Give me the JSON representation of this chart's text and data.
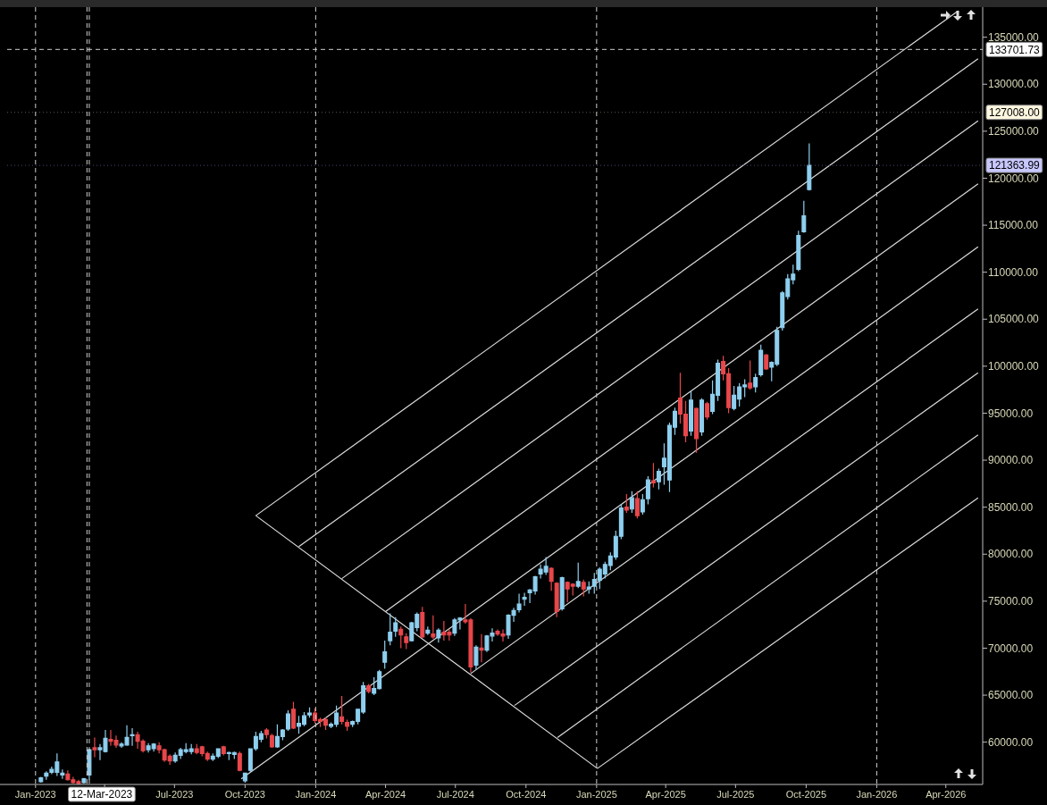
{
  "chart_data": {
    "type": "candlestick",
    "x": [
      "2023-01-08",
      "2023-01-15",
      "2023-01-22",
      "2023-01-29",
      "2023-02-05",
      "2023-02-12",
      "2023-02-19",
      "2023-02-26",
      "2023-03-05",
      "2023-03-12",
      "2023-03-19",
      "2023-03-26",
      "2023-04-02",
      "2023-04-09",
      "2023-04-16",
      "2023-04-23",
      "2023-04-30",
      "2023-05-07",
      "2023-05-14",
      "2023-05-21",
      "2023-05-28",
      "2023-06-04",
      "2023-06-11",
      "2023-06-18",
      "2023-06-25",
      "2023-07-02",
      "2023-07-09",
      "2023-07-16",
      "2023-07-23",
      "2023-07-30",
      "2023-08-06",
      "2023-08-13",
      "2023-08-20",
      "2023-08-27",
      "2023-09-03",
      "2023-09-10",
      "2023-09-17",
      "2023-09-24",
      "2023-10-01",
      "2023-10-08",
      "2023-10-15",
      "2023-10-22",
      "2023-10-29",
      "2023-11-05",
      "2023-11-12",
      "2023-11-19",
      "2023-11-26",
      "2023-12-03",
      "2023-12-10",
      "2023-12-17",
      "2023-12-24",
      "2023-12-31",
      "2024-01-07",
      "2024-01-14",
      "2024-01-21",
      "2024-01-28",
      "2024-02-04",
      "2024-02-11",
      "2024-02-18",
      "2024-02-25",
      "2024-03-03",
      "2024-03-10",
      "2024-03-17",
      "2024-03-24",
      "2024-03-31",
      "2024-04-07",
      "2024-04-14",
      "2024-04-21",
      "2024-04-28",
      "2024-05-05",
      "2024-05-12",
      "2024-05-19",
      "2024-05-26",
      "2024-06-02",
      "2024-06-09",
      "2024-06-16",
      "2024-06-23",
      "2024-06-30",
      "2024-07-07",
      "2024-07-14",
      "2024-07-21",
      "2024-07-28",
      "2024-08-04",
      "2024-08-11",
      "2024-08-18",
      "2024-08-25",
      "2024-09-01",
      "2024-09-08",
      "2024-09-15",
      "2024-09-22",
      "2024-09-29",
      "2024-10-06",
      "2024-10-13",
      "2024-10-20",
      "2024-10-27",
      "2024-11-03",
      "2024-11-10",
      "2024-11-17",
      "2024-11-24",
      "2024-12-01",
      "2024-12-08",
      "2024-12-15",
      "2024-12-22",
      "2024-12-29",
      "2025-01-05",
      "2025-01-12",
      "2025-01-19",
      "2025-01-26",
      "2025-02-02",
      "2025-02-09",
      "2025-02-16",
      "2025-02-23",
      "2025-03-02",
      "2025-03-09",
      "2025-03-16",
      "2025-03-23",
      "2025-03-30",
      "2025-04-06",
      "2025-04-13",
      "2025-04-20",
      "2025-04-27",
      "2025-05-04",
      "2025-05-11",
      "2025-05-18",
      "2025-05-25",
      "2025-06-01",
      "2025-06-08",
      "2025-06-15",
      "2025-06-22",
      "2025-06-29",
      "2025-07-06",
      "2025-07-13",
      "2025-07-20",
      "2025-07-27",
      "2025-08-03",
      "2025-08-10",
      "2025-08-17",
      "2025-08-24",
      "2025-08-31",
      "2025-09-07",
      "2025-09-14",
      "2025-09-21",
      "2025-09-28",
      "2025-10-05"
    ],
    "ohlc": [
      [
        55800,
        56300,
        55700,
        56200
      ],
      [
        56400,
        56900,
        56000,
        56700
      ],
      [
        56800,
        57400,
        56600,
        57100
      ],
      [
        56800,
        58800,
        56400,
        57900
      ],
      [
        56500,
        57100,
        56100,
        56700
      ],
      [
        56600,
        57000,
        55900,
        56000
      ],
      [
        56000,
        56300,
        55600,
        55700
      ],
      [
        55800,
        56000,
        55500,
        55600
      ],
      [
        55700,
        56200,
        55600,
        56100
      ],
      [
        56500,
        59300,
        56000,
        59200
      ],
      [
        59400,
        60500,
        58400,
        59200
      ],
      [
        59200,
        59800,
        58100,
        59400
      ],
      [
        59000,
        61300,
        58900,
        60400
      ],
      [
        60300,
        61300,
        59600,
        60100
      ],
      [
        60200,
        60700,
        59400,
        59700
      ],
      [
        59600,
        60000,
        59400,
        59800
      ],
      [
        59700,
        61800,
        59600,
        60500
      ],
      [
        60700,
        61500,
        59600,
        60800
      ],
      [
        60800,
        61100,
        59300,
        60100
      ],
      [
        60100,
        60300,
        58900,
        59100
      ],
      [
        59200,
        59900,
        58900,
        59600
      ],
      [
        59300,
        59900,
        59000,
        59800
      ],
      [
        59600,
        60000,
        58800,
        59200
      ],
      [
        59200,
        59300,
        57900,
        58100
      ],
      [
        58500,
        58700,
        57600,
        58000
      ],
      [
        58000,
        58900,
        57800,
        58600
      ],
      [
        58600,
        59400,
        58200,
        59200
      ],
      [
        59000,
        59900,
        58800,
        59200
      ],
      [
        59000,
        59800,
        58700,
        59300
      ],
      [
        59300,
        59800,
        58700,
        58900
      ],
      [
        59500,
        59600,
        58500,
        58800
      ],
      [
        58800,
        59000,
        58000,
        58200
      ],
      [
        58200,
        58800,
        58000,
        58500
      ],
      [
        58500,
        59300,
        58300,
        59300
      ],
      [
        59500,
        59600,
        58600,
        58800
      ],
      [
        58800,
        59000,
        58100,
        58900
      ],
      [
        58700,
        59000,
        58200,
        58900
      ],
      [
        58800,
        59000,
        56900,
        57000
      ],
      [
        55900,
        56700,
        55700,
        56700
      ],
      [
        57000,
        59300,
        56800,
        59300
      ],
      [
        59300,
        61100,
        59100,
        60600
      ],
      [
        60300,
        61200,
        60000,
        60900
      ],
      [
        61300,
        61500,
        60400,
        60800
      ],
      [
        60700,
        60900,
        59400,
        59500
      ],
      [
        59500,
        61900,
        59400,
        60600
      ],
      [
        60600,
        61400,
        60200,
        61300
      ],
      [
        61400,
        63400,
        61200,
        63000
      ],
      [
        63500,
        64300,
        61400,
        61500
      ],
      [
        61700,
        62800,
        60900,
        62000
      ],
      [
        61900,
        63200,
        61700,
        62800
      ],
      [
        62900,
        63700,
        62600,
        63100
      ],
      [
        63100,
        63600,
        62000,
        62300
      ],
      [
        62400,
        62600,
        61600,
        62200
      ],
      [
        62400,
        62600,
        61300,
        61800
      ],
      [
        61700,
        62100,
        61500,
        61900
      ],
      [
        61900,
        63900,
        61600,
        63100
      ],
      [
        62700,
        64900,
        61900,
        62200
      ],
      [
        62100,
        62400,
        61200,
        61700
      ],
      [
        61900,
        62300,
        61600,
        62200
      ],
      [
        62200,
        63500,
        61900,
        63500
      ],
      [
        63200,
        66400,
        63000,
        66000
      ],
      [
        66000,
        66200,
        65200,
        65400
      ],
      [
        65200,
        66900,
        65000,
        65700
      ],
      [
        65700,
        67700,
        65600,
        67500
      ],
      [
        68500,
        70800,
        67800,
        69600
      ],
      [
        70800,
        73700,
        70300,
        71700
      ],
      [
        71800,
        73300,
        71200,
        72700
      ],
      [
        72000,
        72300,
        70000,
        71400
      ],
      [
        71200,
        71600,
        69900,
        70600
      ],
      [
        70800,
        72800,
        70700,
        72700
      ],
      [
        72200,
        73800,
        71800,
        73600
      ],
      [
        73800,
        74400,
        71100,
        71200
      ],
      [
        71600,
        72300,
        71400,
        71900
      ],
      [
        71500,
        73500,
        71000,
        71200
      ],
      [
        71100,
        72100,
        70600,
        71900
      ],
      [
        71700,
        72900,
        70800,
        71400
      ],
      [
        71700,
        72000,
        70800,
        71400
      ],
      [
        71600,
        73200,
        71300,
        73000
      ],
      [
        73000,
        73300,
        72000,
        73200
      ],
      [
        73000,
        74700,
        72600,
        72800
      ],
      [
        73000,
        73200,
        67400,
        68000
      ],
      [
        68200,
        70300,
        67700,
        70100
      ],
      [
        70000,
        71500,
        68500,
        69800
      ],
      [
        69800,
        71400,
        69600,
        71300
      ],
      [
        71300,
        72100,
        70700,
        71600
      ],
      [
        71800,
        72000,
        71300,
        71500
      ],
      [
        71500,
        72000,
        70700,
        71300
      ],
      [
        71400,
        73600,
        71000,
        73500
      ],
      [
        73500,
        74300,
        72800,
        74000
      ],
      [
        74100,
        75800,
        73800,
        74700
      ],
      [
        75200,
        75900,
        74500,
        75400
      ],
      [
        75900,
        76300,
        74800,
        76200
      ],
      [
        76100,
        77700,
        75700,
        77600
      ],
      [
        77900,
        78900,
        77400,
        78400
      ],
      [
        78100,
        79700,
        77800,
        78700
      ],
      [
        78500,
        78600,
        76100,
        77100
      ],
      [
        76900,
        77000,
        73300,
        73900
      ],
      [
        74200,
        77600,
        74000,
        77500
      ],
      [
        77000,
        77100,
        74900,
        76300
      ],
      [
        76800,
        76900,
        75600,
        76600
      ],
      [
        76600,
        79100,
        76400,
        77100
      ],
      [
        77000,
        77300,
        75500,
        76300
      ],
      [
        76300,
        77100,
        75800,
        76500
      ],
      [
        76600,
        78000,
        75800,
        77300
      ],
      [
        77200,
        78600,
        76300,
        78400
      ],
      [
        77900,
        79200,
        77400,
        78900
      ],
      [
        78800,
        80200,
        78300,
        79800
      ],
      [
        79700,
        82500,
        79400,
        81900
      ],
      [
        81900,
        85300,
        81600,
        84900
      ],
      [
        85000,
        86400,
        84400,
        84700
      ],
      [
        84800,
        86700,
        84400,
        86000
      ],
      [
        85900,
        86700,
        83800,
        84100
      ],
      [
        84500,
        86400,
        84200,
        85800
      ],
      [
        85900,
        88300,
        85300,
        87900
      ],
      [
        87800,
        89700,
        87100,
        87600
      ],
      [
        87700,
        89100,
        86900,
        88800
      ],
      [
        89300,
        91800,
        87400,
        90200
      ],
      [
        87900,
        94000,
        86600,
        93700
      ],
      [
        93500,
        95600,
        92700,
        95200
      ],
      [
        96600,
        99300,
        93900,
        94900
      ],
      [
        94900,
        96300,
        91900,
        92600
      ],
      [
        93100,
        97400,
        92600,
        96400
      ],
      [
        95500,
        95600,
        90800,
        92300
      ],
      [
        93000,
        96600,
        92600,
        96400
      ],
      [
        96000,
        96200,
        94300,
        94600
      ],
      [
        95200,
        98500,
        94900,
        97000
      ],
      [
        96900,
        100700,
        96300,
        100300
      ],
      [
        100500,
        101100,
        98500,
        99200
      ],
      [
        99200,
        99800,
        95000,
        95600
      ],
      [
        95500,
        97900,
        95300,
        96900
      ],
      [
        96500,
        98200,
        95700,
        97800
      ],
      [
        97800,
        98600,
        96700,
        98000
      ],
      [
        98200,
        100600,
        97500,
        97700
      ],
      [
        97800,
        99200,
        97200,
        98800
      ],
      [
        99100,
        102300,
        98900,
        101700
      ],
      [
        101200,
        101300,
        99600,
        99700
      ],
      [
        99900,
        100500,
        98400,
        100400
      ],
      [
        100200,
        104200,
        100000,
        103800
      ],
      [
        104100,
        108000,
        103800,
        107800
      ],
      [
        107400,
        109800,
        107100,
        109300
      ],
      [
        109200,
        110800,
        108700,
        109800
      ],
      [
        110300,
        114400,
        110100,
        113900
      ],
      [
        114300,
        117600,
        114200,
        116000
      ],
      [
        118800,
        123700,
        118700,
        121363.99
      ]
    ],
    "colors": [
      "#8ecfef",
      "#8ecfef",
      "#8ecfef",
      "#8ecfef",
      "#8ecfef",
      "#e8474b",
      "#e8474b",
      "#e8474b",
      "#8ecfef",
      "#8ecfef",
      "#e8474b",
      "#8ecfef",
      "#8ecfef",
      "#e8474b",
      "#e8474b",
      "#8ecfef",
      "#8ecfef",
      "#8ecfef",
      "#e8474b",
      "#e8474b",
      "#8ecfef",
      "#8ecfef",
      "#e8474b",
      "#e8474b",
      "#e8474b",
      "#8ecfef",
      "#8ecfef",
      "#8ecfef",
      "#8ecfef",
      "#e8474b",
      "#e8474b",
      "#e8474b",
      "#8ecfef",
      "#8ecfef",
      "#e8474b",
      "#8ecfef",
      "#8ecfef",
      "#e8474b",
      "#8ecfef",
      "#8ecfef",
      "#8ecfef",
      "#8ecfef",
      "#e8474b",
      "#e8474b",
      "#8ecfef",
      "#8ecfef",
      "#8ecfef",
      "#e8474b",
      "#8ecfef",
      "#8ecfef",
      "#8ecfef",
      "#e8474b",
      "#e8474b",
      "#e8474b",
      "#8ecfef",
      "#8ecfef",
      "#e8474b",
      "#e8474b",
      "#8ecfef",
      "#8ecfef",
      "#8ecfef",
      "#e8474b",
      "#8ecfef",
      "#8ecfef",
      "#8ecfef",
      "#8ecfef",
      "#8ecfef",
      "#e8474b",
      "#e8474b",
      "#8ecfef",
      "#8ecfef",
      "#e8474b",
      "#8ecfef",
      "#e8474b",
      "#8ecfef",
      "#e8474b",
      "#e8474b",
      "#8ecfef",
      "#8ecfef",
      "#e8474b",
      "#e8474b",
      "#8ecfef",
      "#e8474b",
      "#8ecfef",
      "#8ecfef",
      "#e8474b",
      "#e8474b",
      "#8ecfef",
      "#8ecfef",
      "#8ecfef",
      "#8ecfef",
      "#8ecfef",
      "#8ecfef",
      "#8ecfef",
      "#8ecfef",
      "#e8474b",
      "#e8474b",
      "#8ecfef",
      "#e8474b",
      "#e8474b",
      "#8ecfef",
      "#e8474b",
      "#8ecfef",
      "#8ecfef",
      "#8ecfef",
      "#8ecfef",
      "#8ecfef",
      "#8ecfef",
      "#8ecfef",
      "#e8474b",
      "#8ecfef",
      "#e8474b",
      "#8ecfef",
      "#8ecfef",
      "#e8474b",
      "#8ecfef",
      "#8ecfef",
      "#8ecfef",
      "#8ecfef",
      "#e8474b",
      "#e8474b",
      "#8ecfef",
      "#e8474b",
      "#8ecfef",
      "#e8474b",
      "#8ecfef",
      "#8ecfef",
      "#e8474b",
      "#e8474b",
      "#8ecfef",
      "#8ecfef",
      "#8ecfef",
      "#e8474b",
      "#8ecfef",
      "#8ecfef",
      "#e8474b",
      "#8ecfef",
      "#8ecfef",
      "#8ecfef",
      "#8ecfef",
      "#8ecfef",
      "#8ecfef",
      "#8ecfef",
      "#8ecfef"
    ],
    "series": [
      {
        "type": "line",
        "color": "#dcdcdc",
        "x": [
          "2023-10-15",
          "2026-04-17"
        ],
        "values": [
          84100,
          137800
        ]
      },
      {
        "type": "line",
        "color": "#dcdcdc",
        "x": [
          "2023-12-10",
          "2026-05-13"
        ],
        "values": [
          80800,
          132700
        ]
      },
      {
        "type": "line",
        "color": "#dcdcdc",
        "x": [
          "2024-02-04",
          "2026-05-13"
        ],
        "values": [
          77400,
          126100
        ]
      },
      {
        "type": "line",
        "color": "#dcdcdc",
        "x": [
          "2024-04-01",
          "2026-05-13"
        ],
        "values": [
          73900,
          119400
        ]
      },
      {
        "type": "line",
        "color": "#dcdcdc",
        "x": [
          "2023-09-26",
          "2026-05-13"
        ],
        "values": [
          56100,
          112700
        ]
      },
      {
        "type": "line",
        "color": "#dcdcdc",
        "x": [
          "2024-07-21",
          "2026-05-13"
        ],
        "values": [
          67300,
          106100
        ]
      },
      {
        "type": "line",
        "color": "#dcdcdc",
        "x": [
          "2024-09-16",
          "2026-05-13"
        ],
        "values": [
          63900,
          99300
        ]
      },
      {
        "type": "line",
        "color": "#dcdcdc",
        "x": [
          "2024-11-11",
          "2026-05-13"
        ],
        "values": [
          60500,
          92700
        ]
      },
      {
        "type": "line",
        "color": "#dcdcdc",
        "x": [
          "2025-01-02",
          "2026-05-13"
        ],
        "values": [
          57200,
          86000
        ]
      },
      {
        "type": "line",
        "color": "#dcdcdc",
        "x": [
          "2023-10-15",
          "2025-01-02"
        ],
        "values": [
          84100,
          57200
        ]
      }
    ],
    "xlim": [
      "2022-11-25",
      "2026-05-19"
    ],
    "xticks": [
      {
        "value": "2023-01-01",
        "label": "Jan-2023"
      },
      {
        "value": "2023-04-01",
        "label": null
      },
      {
        "value": "2023-07-01",
        "label": "Jul-2023"
      },
      {
        "value": "2023-10-01",
        "label": "Oct-2023"
      },
      {
        "value": "2024-01-01",
        "label": "Jan-2024"
      },
      {
        "value": "2024-04-01",
        "label": "Apr-2024"
      },
      {
        "value": "2024-07-01",
        "label": "Jul-2024"
      },
      {
        "value": "2024-10-01",
        "label": "Oct-2024"
      },
      {
        "value": "2025-01-01",
        "label": "Jan-2025"
      },
      {
        "value": "2025-04-01",
        "label": "Apr-2025"
      },
      {
        "value": "2025-07-01",
        "label": "Jul-2025"
      },
      {
        "value": "2025-10-01",
        "label": "Oct-2025"
      },
      {
        "value": "2026-01-01",
        "label": "Jan-2026"
      },
      {
        "value": "2026-04-01",
        "label": "Apr-2026"
      }
    ],
    "ylim": [
      55500,
      138200
    ],
    "yticks": [
      {
        "value": 60000,
        "label": "60000.00"
      },
      {
        "value": 65000,
        "label": "65000.00"
      },
      {
        "value": 70000,
        "label": "70000.00"
      },
      {
        "value": 75000,
        "label": "75000.00"
      },
      {
        "value": 80000,
        "label": "80000.00"
      },
      {
        "value": 85000,
        "label": "85000.00"
      },
      {
        "value": 90000,
        "label": "90000.00"
      },
      {
        "value": 95000,
        "label": "95000.00"
      },
      {
        "value": 100000,
        "label": "100000.00"
      },
      {
        "value": 105000,
        "label": "105000.00"
      },
      {
        "value": 110000,
        "label": "110000.00"
      },
      {
        "value": 115000,
        "label": "115000.00"
      },
      {
        "value": 120000,
        "label": "120000.00"
      },
      {
        "value": 125000,
        "label": "125000.00"
      },
      {
        "value": 130000,
        "label": "130000.00"
      },
      {
        "value": 135000,
        "label": "135000.00"
      }
    ],
    "ref_lines": [
      {
        "axis": "x",
        "value": "2023-01-01",
        "line_style": "dashed",
        "color": "#cfcfcf"
      },
      {
        "axis": "x",
        "value": "2023-03-09",
        "line_style": "dashed",
        "color": "#cfcfcf"
      },
      {
        "axis": "x",
        "value": "2023-03-12",
        "line_style": "dashed",
        "color": "#cfcfcf",
        "label": "12-Mar-2023"
      },
      {
        "axis": "x",
        "value": "2024-01-01",
        "line_style": "dashed",
        "color": "#cfcfcf"
      },
      {
        "axis": "x",
        "value": "2025-01-01",
        "line_style": "dashed",
        "color": "#cfcfcf"
      },
      {
        "axis": "x",
        "value": "2026-01-01",
        "line_style": "dashed",
        "color": "#cfcfcf"
      },
      {
        "axis": "y",
        "value": 133701.73,
        "line_style": "dashed",
        "color": "#cfcfcf",
        "label": "133701.73"
      },
      {
        "axis": "y",
        "value": 127008,
        "line_style": "dotted",
        "color": "#5a5a50",
        "label": "127008.00"
      },
      {
        "axis": "y",
        "value": 121363.99,
        "line_style": "dotted",
        "color": "#4a4a70",
        "label": "121363.99"
      }
    ],
    "grid": false
  }
}
